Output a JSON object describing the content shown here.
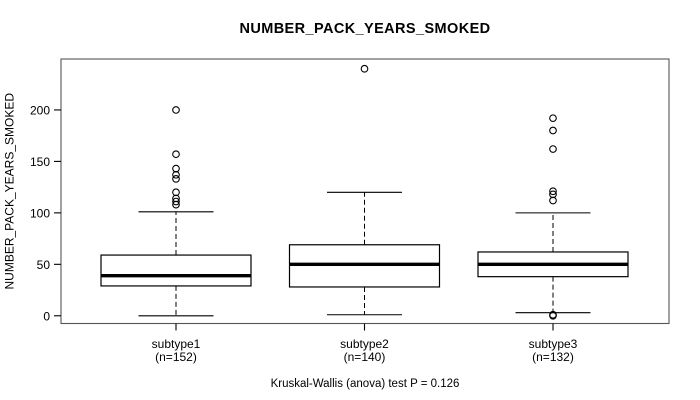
{
  "title": "NUMBER_PACK_YEARS_SMOKED",
  "y_axis_label": "NUMBER_PACK_YEARS_SMOKED",
  "caption": "Kruskal-Wallis (anova) test P = 0.126",
  "chart_data": {
    "type": "boxplot",
    "title": "NUMBER_PACK_YEARS_SMOKED",
    "ylabel": "NUMBER_PACK_YEARS_SMOKED",
    "xlabel": "",
    "ylim": [
      -7.5,
      249.5
    ],
    "yticks": [
      0,
      50,
      100,
      150,
      200
    ],
    "grid": false,
    "whisker_style": "dashed",
    "stat_test": "Kruskal-Wallis (anova) test P = 0.126",
    "p_value": 0.126,
    "groups": [
      {
        "label": "subtype1",
        "n_label": "(n=152)",
        "n": 152,
        "lower_whisker": 0,
        "q1": 29,
        "median": 39,
        "q3": 59,
        "upper_whisker": 101,
        "outliers": [
          108,
          111,
          114,
          120,
          133,
          137,
          143,
          157,
          200
        ]
      },
      {
        "label": "subtype2",
        "n_label": "(n=140)",
        "n": 140,
        "lower_whisker": 1,
        "q1": 28,
        "median": 50,
        "q3": 69,
        "upper_whisker": 120,
        "outliers": [
          240
        ]
      },
      {
        "label": "subtype3",
        "n_label": "(n=132)",
        "n": 132,
        "lower_whisker": 3,
        "q1": 38,
        "median": 50,
        "q3": 62,
        "upper_whisker": 100,
        "outliers": [
          0,
          1,
          112,
          118,
          121,
          162,
          180,
          192
        ]
      }
    ]
  }
}
